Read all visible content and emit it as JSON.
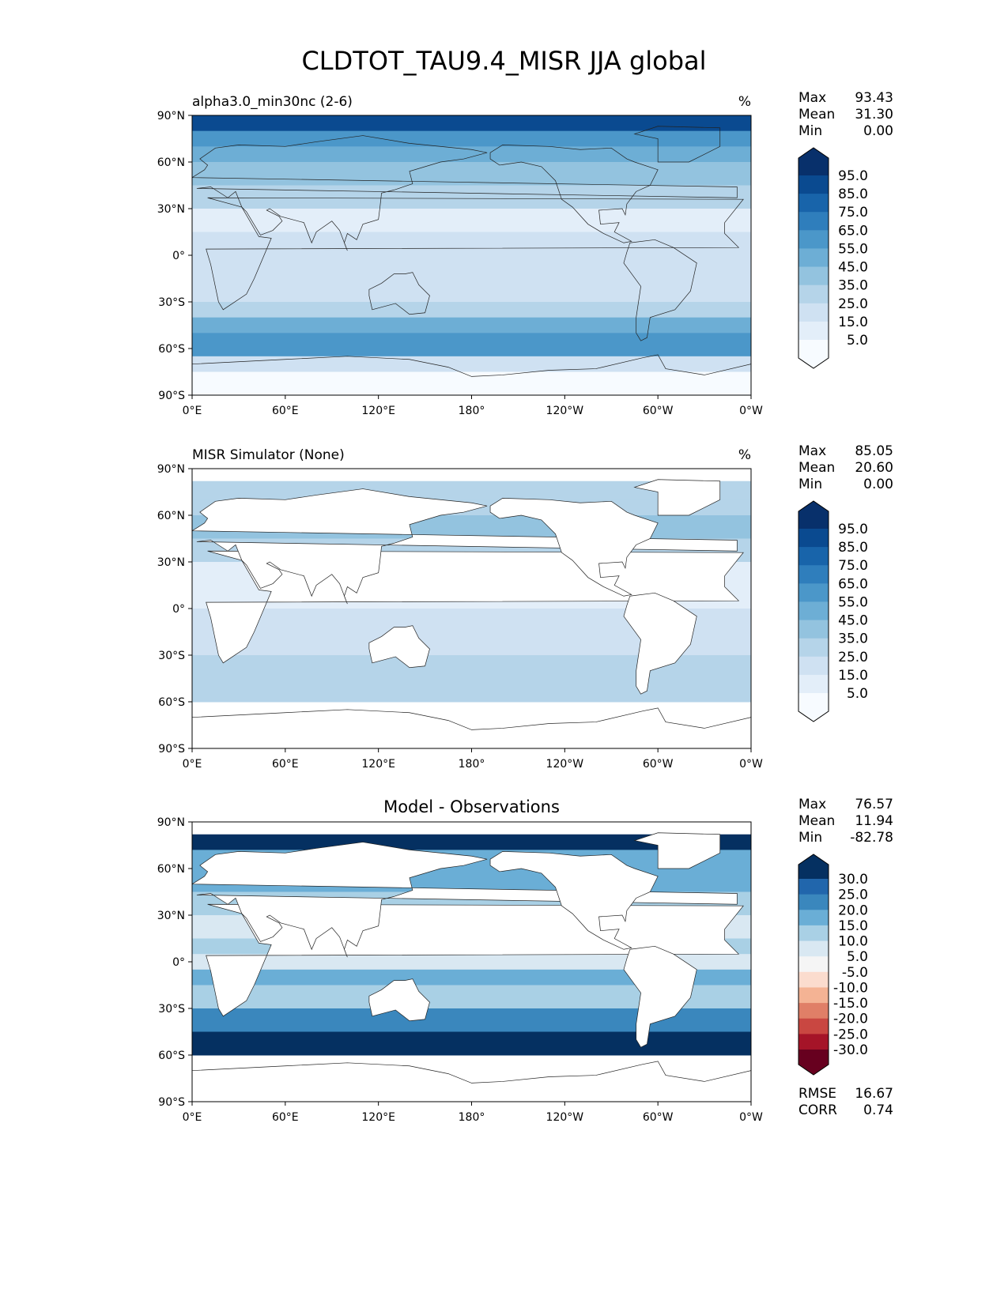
{
  "title": "CLDTOT_TAU9.4_MISR JJA global",
  "x_ticks": [
    "0°E",
    "60°E",
    "120°E",
    "180°",
    "120°W",
    "60°W",
    "0°W"
  ],
  "y_ticks": [
    "90°N",
    "60°N",
    "30°N",
    "0°",
    "30°S",
    "60°S",
    "90°S"
  ],
  "panels": [
    {
      "left_title": "alpha3.0_min30nc (2-6)",
      "center_title": "",
      "units": "%",
      "stats": [
        {
          "label": "Max",
          "value": "93.43"
        },
        {
          "label": "Mean",
          "value": "31.30"
        },
        {
          "label": "Min",
          "value": "0.00"
        }
      ]
    },
    {
      "left_title": "MISR Simulator (None)",
      "center_title": "",
      "units": "%",
      "stats": [
        {
          "label": "Max",
          "value": "85.05"
        },
        {
          "label": "Mean",
          "value": "20.60"
        },
        {
          "label": "Min",
          "value": "0.00"
        }
      ]
    },
    {
      "left_title": "",
      "center_title": "Model - Observations",
      "units": "",
      "stats": [
        {
          "label": "Max",
          "value": "76.57"
        },
        {
          "label": "Mean",
          "value": "11.94"
        },
        {
          "label": "Min",
          "value": "-82.78"
        }
      ],
      "extra_stats": [
        {
          "label": "RMSE",
          "value": "16.67"
        },
        {
          "label": "CORR",
          "value": "0.74"
        }
      ]
    }
  ],
  "colorbar_seq": {
    "labels": [
      "95.0",
      "85.0",
      "75.0",
      "65.0",
      "55.0",
      "45.0",
      "35.0",
      "25.0",
      "15.0",
      "5.0"
    ],
    "colors": [
      "#08306b",
      "#0a4a90",
      "#1864aa",
      "#2f7ebc",
      "#4b97c9",
      "#6daed5",
      "#93c3df",
      "#b5d4e9",
      "#cfe1f2",
      "#e3eef9",
      "#f7fbff"
    ]
  },
  "colorbar_diff": {
    "labels": [
      "30.0",
      "25.0",
      "20.0",
      "15.0",
      "10.0",
      "5.0",
      "-5.0",
      "-10.0",
      "-15.0",
      "-20.0",
      "-25.0",
      "-30.0"
    ],
    "colors": [
      "#053061",
      "#2166ac",
      "#3a87bd",
      "#6aaed6",
      "#a9d0e5",
      "#d9e8f2",
      "#f5f5f5",
      "#fbdcce",
      "#f4b394",
      "#e07f67",
      "#c94741",
      "#a51428",
      "#67001f"
    ]
  }
}
